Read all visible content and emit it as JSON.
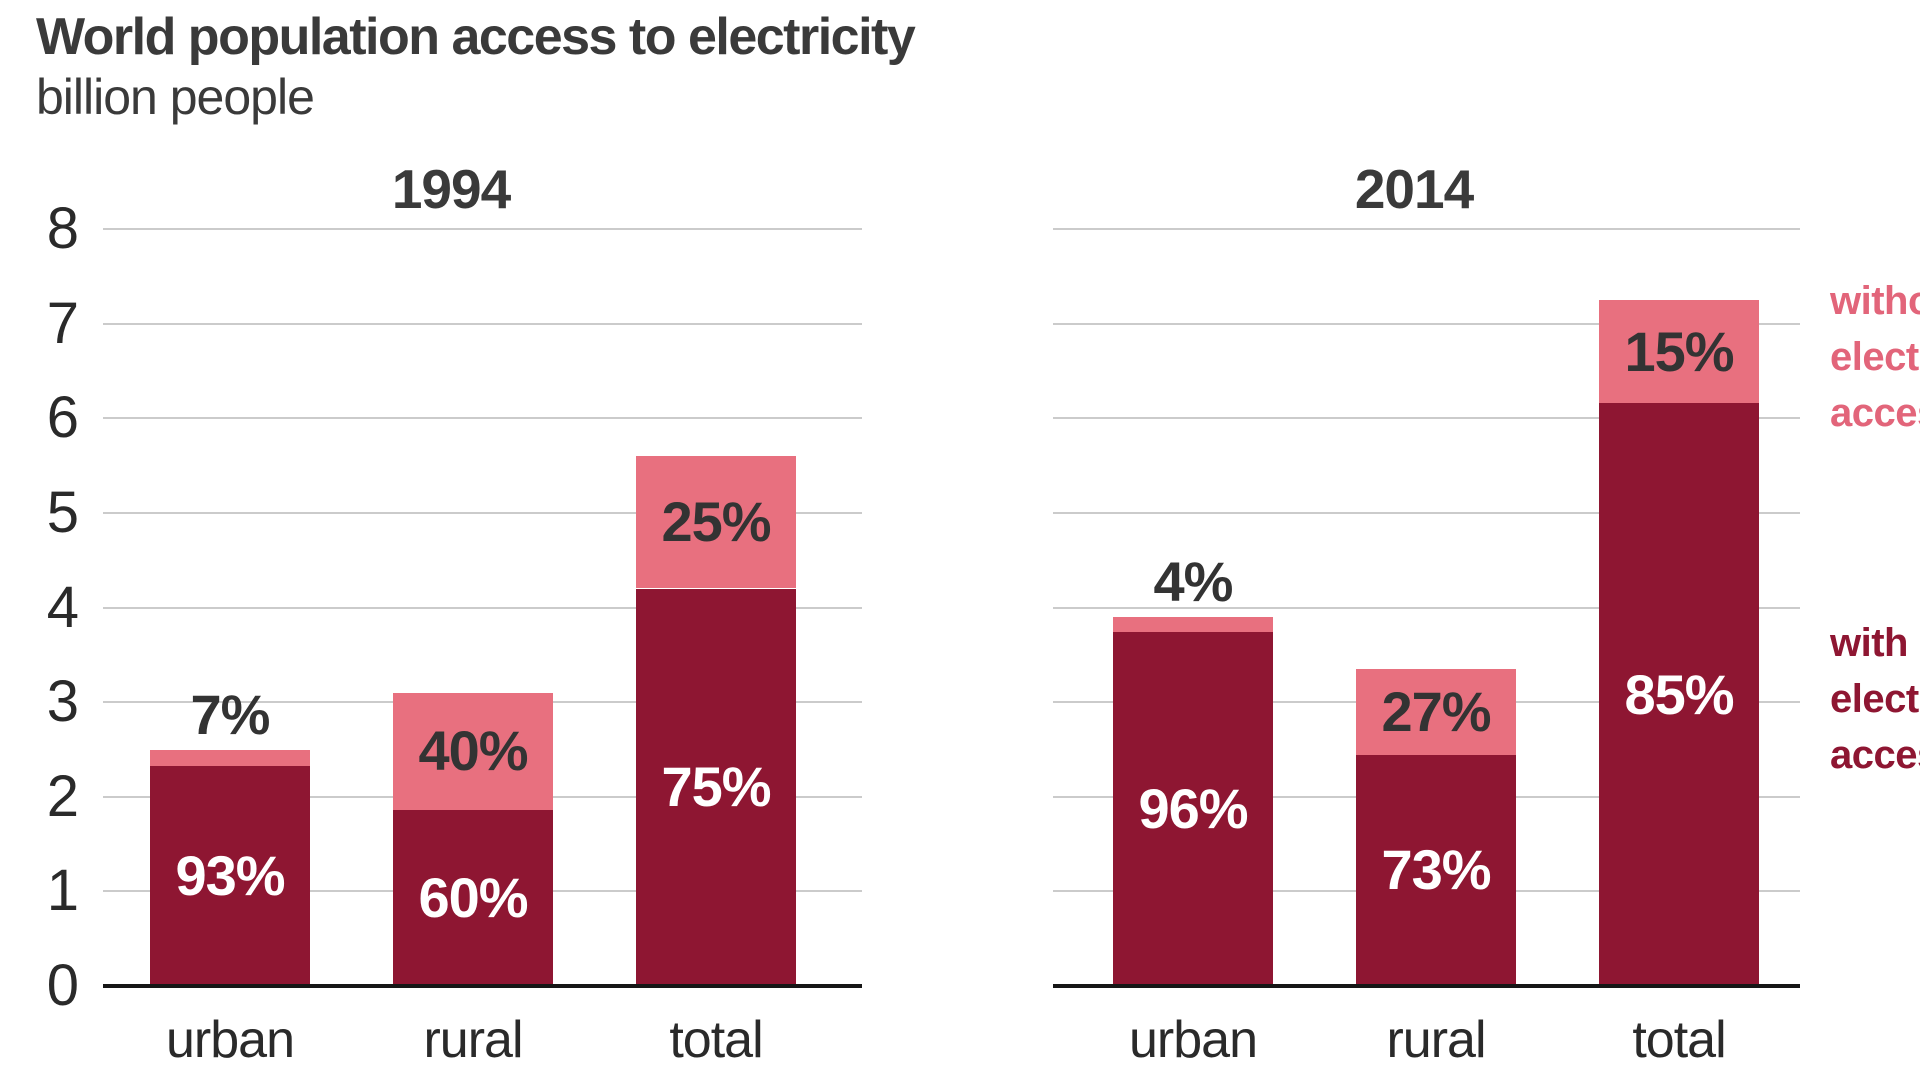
{
  "title": "World population access to electricity",
  "subtitle": "billion people",
  "colors": {
    "bar_with_access": "#8e1632",
    "bar_without_access": "#e8707f",
    "legend_with_text": "#8e1632",
    "legend_without_text": "#e2657a",
    "gridline": "#cbcbcb",
    "axis": "#161616",
    "label_dark": "#333333",
    "label_on_dark": "#ffffff"
  },
  "legend": [
    {
      "name": "without-electricity-access",
      "label": "without electricity access",
      "lines": [
        "without",
        "electricity",
        "access"
      ]
    },
    {
      "name": "with-electricity-access",
      "label": "with electricity access",
      "lines": [
        "with",
        "electricity",
        "access"
      ]
    }
  ],
  "chart_data": {
    "type": "bar",
    "stacked": true,
    "title": "World population access to electricity",
    "ylabel": "billion people",
    "ylim": [
      0,
      8
    ],
    "yticks": [
      0,
      1,
      2,
      3,
      4,
      5,
      6,
      7,
      8
    ],
    "grid": true,
    "categories": [
      "urban",
      "rural",
      "total"
    ],
    "series_meaning": "each bar total is population in billions, split into % with electricity access (dark) and % without (pink)",
    "panels": [
      {
        "title": "1994",
        "bars": [
          {
            "category": "urban",
            "total_billion": 2.5,
            "with_pct": 93,
            "without_pct": 7,
            "without_label_position": "above"
          },
          {
            "category": "rural",
            "total_billion": 3.1,
            "with_pct": 60,
            "without_pct": 40,
            "without_label_position": "inside"
          },
          {
            "category": "total",
            "total_billion": 5.6,
            "with_pct": 75,
            "without_pct": 25,
            "without_label_position": "inside"
          }
        ]
      },
      {
        "title": "2014",
        "bars": [
          {
            "category": "urban",
            "total_billion": 3.9,
            "with_pct": 96,
            "without_pct": 4,
            "without_label_position": "above"
          },
          {
            "category": "rural",
            "total_billion": 3.35,
            "with_pct": 73,
            "without_pct": 27,
            "without_label_position": "inside"
          },
          {
            "category": "total",
            "total_billion": 7.25,
            "with_pct": 85,
            "without_pct": 15,
            "without_label_position": "inside"
          }
        ]
      }
    ]
  }
}
